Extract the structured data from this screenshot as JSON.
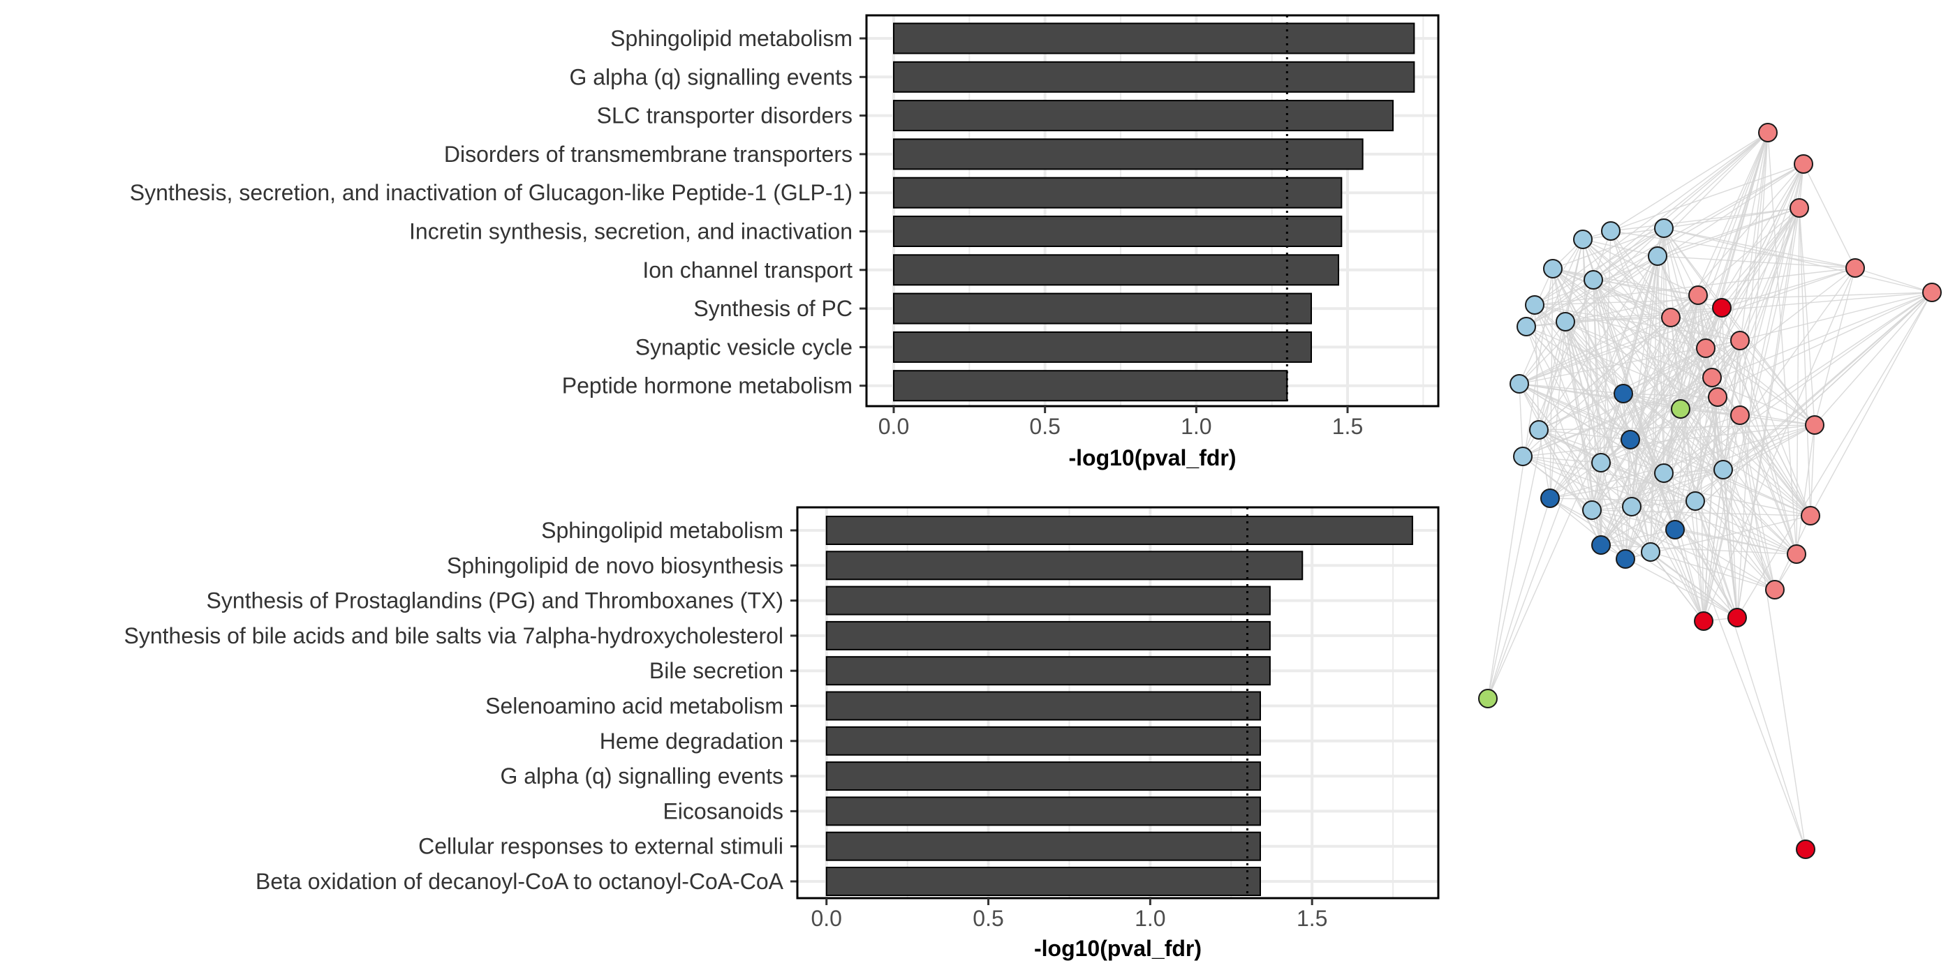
{
  "chart_data": [
    {
      "type": "bar",
      "orientation": "horizontal",
      "categories": [
        "Sphingolipid metabolism",
        "G alpha (q) signalling events",
        "SLC transporter disorders",
        "Disorders of transmembrane transporters",
        "Synthesis, secretion, and inactivation of Glucagon-like Peptide-1 (GLP-1)",
        "Incretin synthesis, secretion, and inactivation",
        "Ion channel transport",
        "Synthesis of PC",
        "Synaptic vesicle cycle",
        "Peptide hormone metabolism"
      ],
      "values": [
        1.72,
        1.72,
        1.65,
        1.55,
        1.48,
        1.48,
        1.47,
        1.38,
        1.38,
        1.3
      ],
      "xlabel": "-log10(pval_fdr)",
      "ylabel": "",
      "xlim": [
        -0.09,
        1.8
      ],
      "xticks": [
        "0.0",
        "0.5",
        "1.0",
        "1.5"
      ],
      "threshold": 1.3,
      "grid": true,
      "bar_color": "#474747"
    },
    {
      "type": "bar",
      "orientation": "horizontal",
      "categories": [
        "Sphingolipid metabolism",
        "Sphingolipid de novo biosynthesis",
        "Synthesis of Prostaglandins (PG) and Thromboxanes (TX)",
        "Synthesis of bile acids and bile salts via 7alpha-hydroxycholesterol",
        "Bile secretion",
        "Selenoamino acid metabolism",
        "Heme degradation",
        "G alpha (q) signalling events",
        "Eicosanoids",
        "Cellular responses to external stimuli",
        "Beta oxidation of decanoyl-CoA to octanoyl-CoA-CoA"
      ],
      "values": [
        1.81,
        1.47,
        1.37,
        1.37,
        1.37,
        1.34,
        1.34,
        1.34,
        1.34,
        1.34,
        1.34
      ],
      "xlabel": "-log10(pval_fdr)",
      "ylabel": "",
      "xlim": [
        -0.09,
        1.89
      ],
      "xticks": [
        "0.0",
        "0.5",
        "1.0",
        "1.5"
      ],
      "threshold": 1.3,
      "grid": true,
      "bar_color": "#474747"
    }
  ],
  "network": {
    "type": "network",
    "edge_color": "#d4d4d4",
    "node_border": "#1a1a1a",
    "group_colors": {
      "light_blue": "#9ecae1",
      "dark_blue": "#2166ac",
      "pink": "#f08080",
      "red": "#e3001b",
      "light_green": "#a6d96a"
    },
    "nodes": [
      {
        "id": "n1",
        "group": "pink"
      },
      {
        "id": "n2",
        "group": "pink"
      },
      {
        "id": "n3",
        "group": "pink"
      },
      {
        "id": "n4",
        "group": "pink"
      },
      {
        "id": "n5",
        "group": "pink"
      },
      {
        "id": "n6",
        "group": "light_blue"
      },
      {
        "id": "n7",
        "group": "light_blue"
      },
      {
        "id": "n8",
        "group": "light_blue"
      },
      {
        "id": "n9",
        "group": "light_blue"
      },
      {
        "id": "n10",
        "group": "light_blue"
      },
      {
        "id": "n11",
        "group": "light_blue"
      },
      {
        "id": "n12",
        "group": "pink"
      },
      {
        "id": "n13",
        "group": "red"
      },
      {
        "id": "n14",
        "group": "light_blue"
      },
      {
        "id": "n15",
        "group": "light_blue"
      },
      {
        "id": "n16",
        "group": "pink"
      },
      {
        "id": "n17",
        "group": "pink"
      },
      {
        "id": "n18",
        "group": "pink"
      },
      {
        "id": "n19",
        "group": "light_blue"
      },
      {
        "id": "n20",
        "group": "pink"
      },
      {
        "id": "n21",
        "group": "light_blue"
      },
      {
        "id": "n22",
        "group": "dark_blue"
      },
      {
        "id": "n23",
        "group": "pink"
      },
      {
        "id": "n24",
        "group": "light_green"
      },
      {
        "id": "n25",
        "group": "pink"
      },
      {
        "id": "n26",
        "group": "pink"
      },
      {
        "id": "n27",
        "group": "light_blue"
      },
      {
        "id": "n28",
        "group": "dark_blue"
      },
      {
        "id": "n29",
        "group": "light_blue"
      },
      {
        "id": "n30",
        "group": "light_blue"
      },
      {
        "id": "n31",
        "group": "light_blue"
      },
      {
        "id": "n32",
        "group": "light_blue"
      },
      {
        "id": "n33",
        "group": "dark_blue"
      },
      {
        "id": "n34",
        "group": "light_blue"
      },
      {
        "id": "n35",
        "group": "light_blue"
      },
      {
        "id": "n36",
        "group": "light_blue"
      },
      {
        "id": "n37",
        "group": "dark_blue"
      },
      {
        "id": "n38",
        "group": "pink"
      },
      {
        "id": "n39",
        "group": "dark_blue"
      },
      {
        "id": "n40",
        "group": "dark_blue"
      },
      {
        "id": "n41",
        "group": "light_blue"
      },
      {
        "id": "n42",
        "group": "pink"
      },
      {
        "id": "n43",
        "group": "pink"
      },
      {
        "id": "n44",
        "group": "red"
      },
      {
        "id": "n45",
        "group": "red"
      },
      {
        "id": "n46",
        "group": "light_green"
      },
      {
        "id": "n47",
        "group": "red"
      }
    ]
  }
}
